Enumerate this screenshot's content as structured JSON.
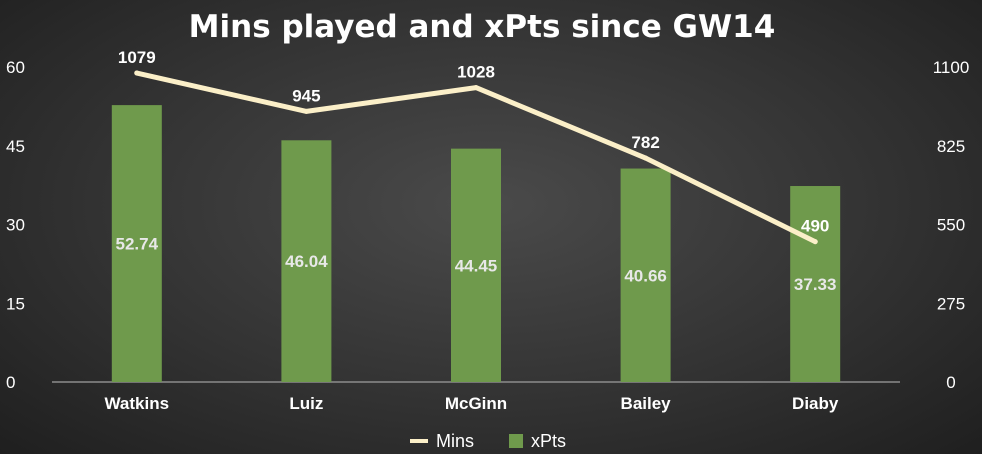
{
  "chart_data": {
    "type": "bar",
    "title": "Mins played and xPts since GW14",
    "categories": [
      "Watkins",
      "Luiz",
      "McGinn",
      "Bailey",
      "Diaby"
    ],
    "series": [
      {
        "name": "xPts",
        "type": "bar",
        "axis": "left",
        "values": [
          52.74,
          46.04,
          44.45,
          40.66,
          37.33
        ],
        "labels": [
          "52.74",
          "46.04",
          "44.45",
          "40.66",
          "37.33"
        ],
        "color": "#6f9a4c"
      },
      {
        "name": "Mins",
        "type": "line",
        "axis": "right",
        "values": [
          1079,
          945,
          1028,
          782,
          490
        ],
        "labels": [
          "1079",
          "945",
          "1028",
          "782",
          "490"
        ],
        "color": "#fbefc8"
      }
    ],
    "y_left": {
      "ticks": [
        "0",
        "15",
        "30",
        "45",
        "60"
      ],
      "ylim": [
        0,
        60
      ]
    },
    "y_right": {
      "ticks": [
        "0",
        "275",
        "550",
        "825",
        "1100"
      ],
      "ylim": [
        0,
        1100
      ]
    },
    "legend": {
      "position": "bottom",
      "items": [
        {
          "label": "Mins",
          "marker": "line",
          "color": "#fbefc8"
        },
        {
          "label": "xPts",
          "marker": "square",
          "color": "#6f9a4c"
        }
      ]
    },
    "grid": false
  }
}
